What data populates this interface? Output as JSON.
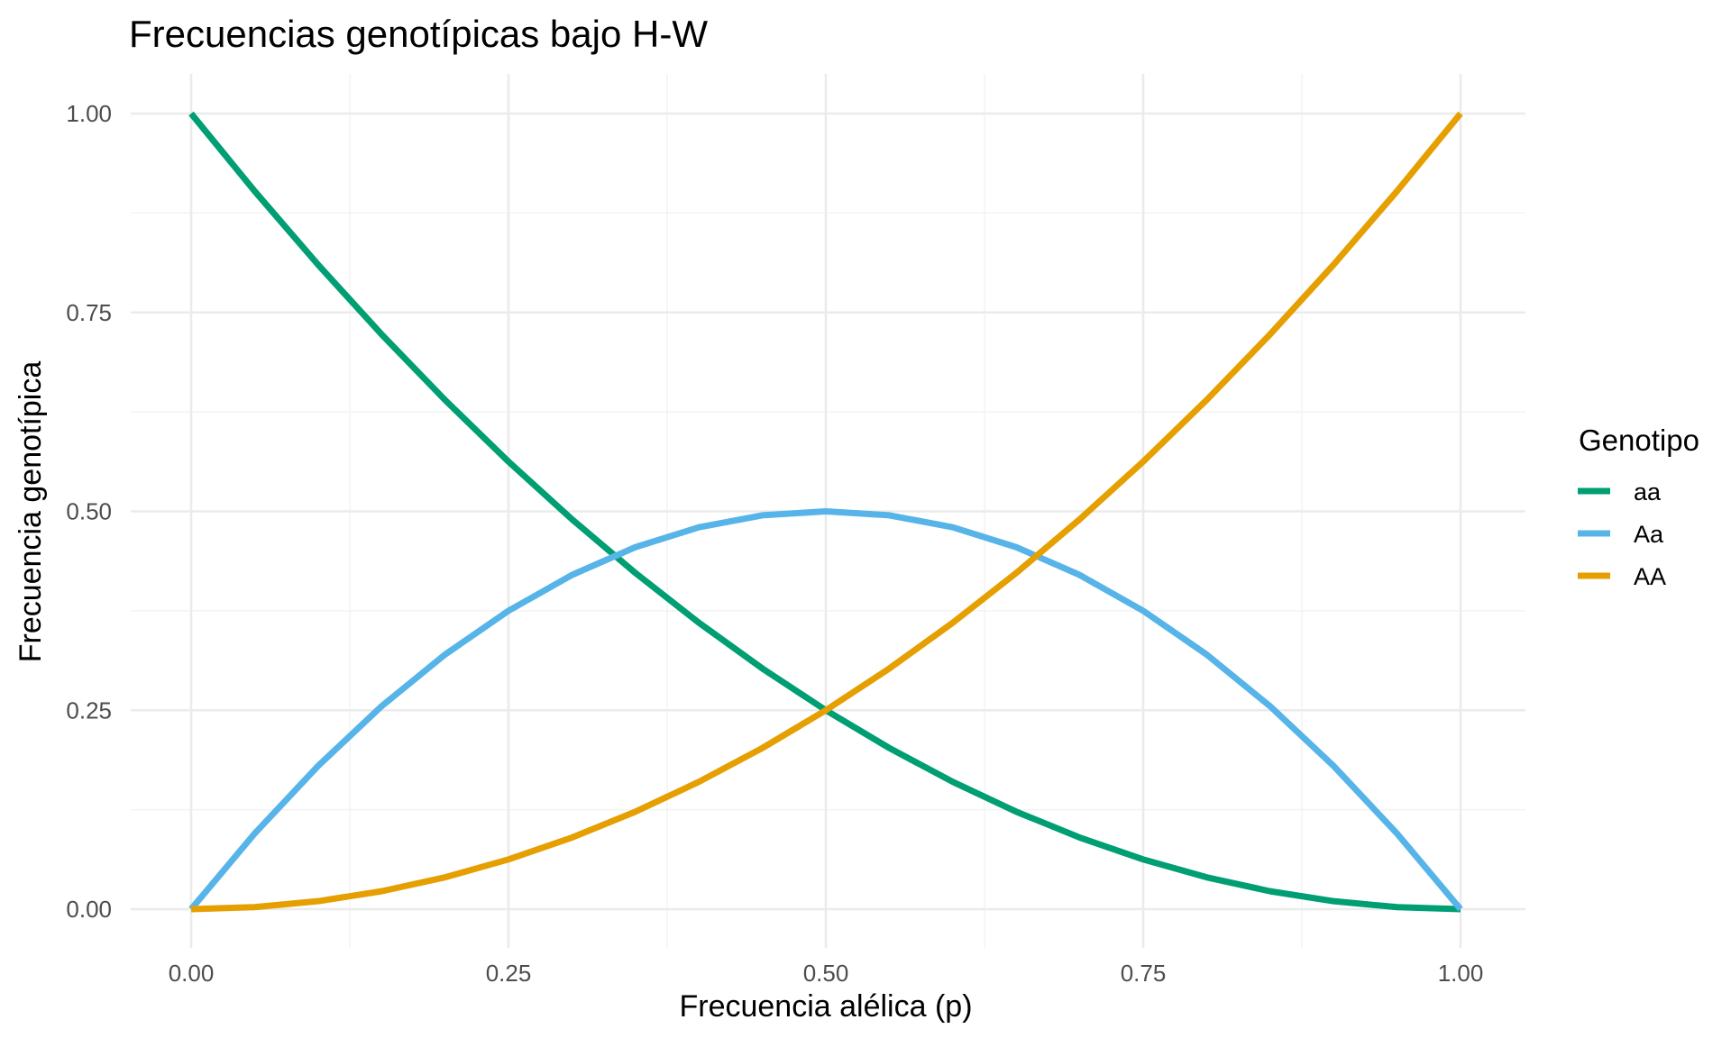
{
  "chart_data": {
    "type": "line",
    "title": "Frecuencias genotípicas bajo H-W",
    "xlabel": "Frecuencia alélica (p)",
    "ylabel": "Frecuencia genotípica",
    "xlim": [
      0,
      1
    ],
    "ylim": [
      0,
      1
    ],
    "x_ticks": [
      "0.00",
      "0.25",
      "0.50",
      "0.75",
      "1.00"
    ],
    "y_ticks": [
      "0.00",
      "0.25",
      "0.50",
      "0.75",
      "1.00"
    ],
    "grid": true,
    "legend": {
      "title": "Genotipo",
      "position": "right"
    },
    "x": [
      0,
      0.05,
      0.1,
      0.15,
      0.2,
      0.25,
      0.3,
      0.35,
      0.4,
      0.45,
      0.5,
      0.55,
      0.6,
      0.65,
      0.7,
      0.75,
      0.8,
      0.85,
      0.9,
      0.95,
      1
    ],
    "series": [
      {
        "name": "aa",
        "color": "#009E73",
        "values": [
          1,
          0.9025,
          0.81,
          0.7225,
          0.64,
          0.5625,
          0.49,
          0.4225,
          0.36,
          0.3025,
          0.25,
          0.2025,
          0.16,
          0.1225,
          0.09,
          0.0625,
          0.04,
          0.0225,
          0.01,
          0.0025,
          0
        ]
      },
      {
        "name": "Aa",
        "color": "#56B4E9",
        "values": [
          0,
          0.095,
          0.18,
          0.255,
          0.32,
          0.375,
          0.42,
          0.455,
          0.48,
          0.495,
          0.5,
          0.495,
          0.48,
          0.455,
          0.42,
          0.375,
          0.32,
          0.255,
          0.18,
          0.095,
          0
        ]
      },
      {
        "name": "AA",
        "color": "#E69F00",
        "values": [
          0,
          0.0025,
          0.01,
          0.0225,
          0.04,
          0.0625,
          0.09,
          0.1225,
          0.16,
          0.2025,
          0.25,
          0.3025,
          0.36,
          0.4225,
          0.49,
          0.5625,
          0.64,
          0.7225,
          0.81,
          0.9025,
          1
        ]
      }
    ]
  }
}
